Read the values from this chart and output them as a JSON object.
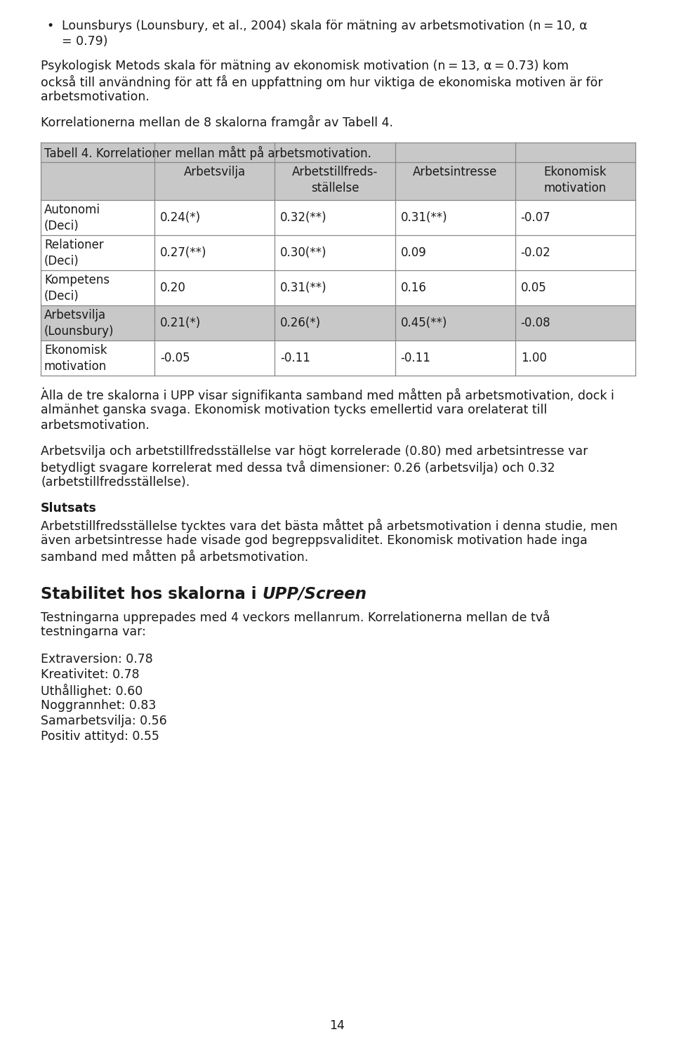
{
  "bullet_text_line1": "Lounsburys (Lounsbury, et al., 2004) skala för mätning av arbetsmotivation (n = 10, α",
  "bullet_text_line2": "= 0.79)",
  "para1_lines": [
    "Psykologisk Metods skala för mätning av ekonomisk motivation (n = 13, α = 0.73) kom",
    "också till användning för att få en uppfattning om hur viktiga de ekonomiska motiven är för",
    "arbetsmotivation."
  ],
  "para2": "Korrelationerna mellan de 8 skalorna framgår av Tabell 4.",
  "table_title": "Tabell 4. Korrelationer mellan mått på arbetsmotivation.",
  "col_headers": [
    "Arbetsvilja",
    "Arbetstillfreds-\nställelse",
    "Arbetsintresse",
    "Ekonomisk\nmotivation"
  ],
  "row_labels": [
    "Autonomi\n(Deci)",
    "Relationer\n(Deci)",
    "Kompetens\n(Deci)",
    "Arbetsvilja\n(Lounsbury)",
    "Ekonomisk\nmotivation"
  ],
  "table_data": [
    [
      "0.24(*)",
      "0.32(**)",
      "0.31(**)",
      "-0.07"
    ],
    [
      "0.27(**)",
      "0.30(**)",
      "0.09",
      "-0.02"
    ],
    [
      "0.20",
      "0.31(**)",
      "0.16",
      "0.05"
    ],
    [
      "0.21(*)",
      "0.26(*)",
      "0.45(**)",
      "-0.08"
    ],
    [
      "-0.05",
      "-0.11",
      "-0.11",
      "1.00"
    ]
  ],
  "row_shading": [
    false,
    false,
    false,
    true,
    false
  ],
  "para3_lines": [
    "Alla de tre skalorna i UPP visar signifikanta samband med måtten på arbetsmotivation, dock i",
    "almänhet ganska svaga. Ekonomisk motivation tycks emellertid vara orelaterat till",
    "arbetsmotivation."
  ],
  "para4_lines": [
    "Arbetsvilja och arbetstillfredsställelse var högt korrelerade (0.80) med arbetsintresse var",
    "betydligt svagare korrelerat med dessa två dimensioner: 0.26 (arbetsvilja) och 0.32",
    "(arbetstillfredsställelse)."
  ],
  "section_slutsats": "Slutsats",
  "para5_lines": [
    "Arbetstillfredsställelse tycktes vara det bästa måttet på arbetsmotivation i denna studie, men",
    "även arbetsintresse hade visade god begreppsvaliditet. Ekonomisk motivation hade inga",
    "samband med måtten på arbetsmotivation."
  ],
  "section_stabilitet_normal": "Stabilitet hos skalorna i ",
  "section_stabilitet_italic": "UPP/Screen",
  "para6_lines": [
    "Testningarna upprepades med 4 veckors mellanrum. Korrelationerna mellan de två",
    "testningarna var:"
  ],
  "list_items": [
    "Extraversion: 0.78",
    "Kreativitet: 0.78",
    "Uthållighet: 0.60",
    "Noggrannhet: 0.83",
    "Samarbetsvilja: 0.56",
    "Positiv attityd: 0.55"
  ],
  "page_number": "14",
  "bg_color": "#ffffff",
  "text_color": "#1a1a1a",
  "table_header_bg": "#c8c8c8",
  "table_row_alt_bg": "#c8c8c8",
  "table_border_color": "#888888",
  "font_size_body": 12.5,
  "font_size_table": 12.0,
  "font_size_heading_large": 16.5
}
